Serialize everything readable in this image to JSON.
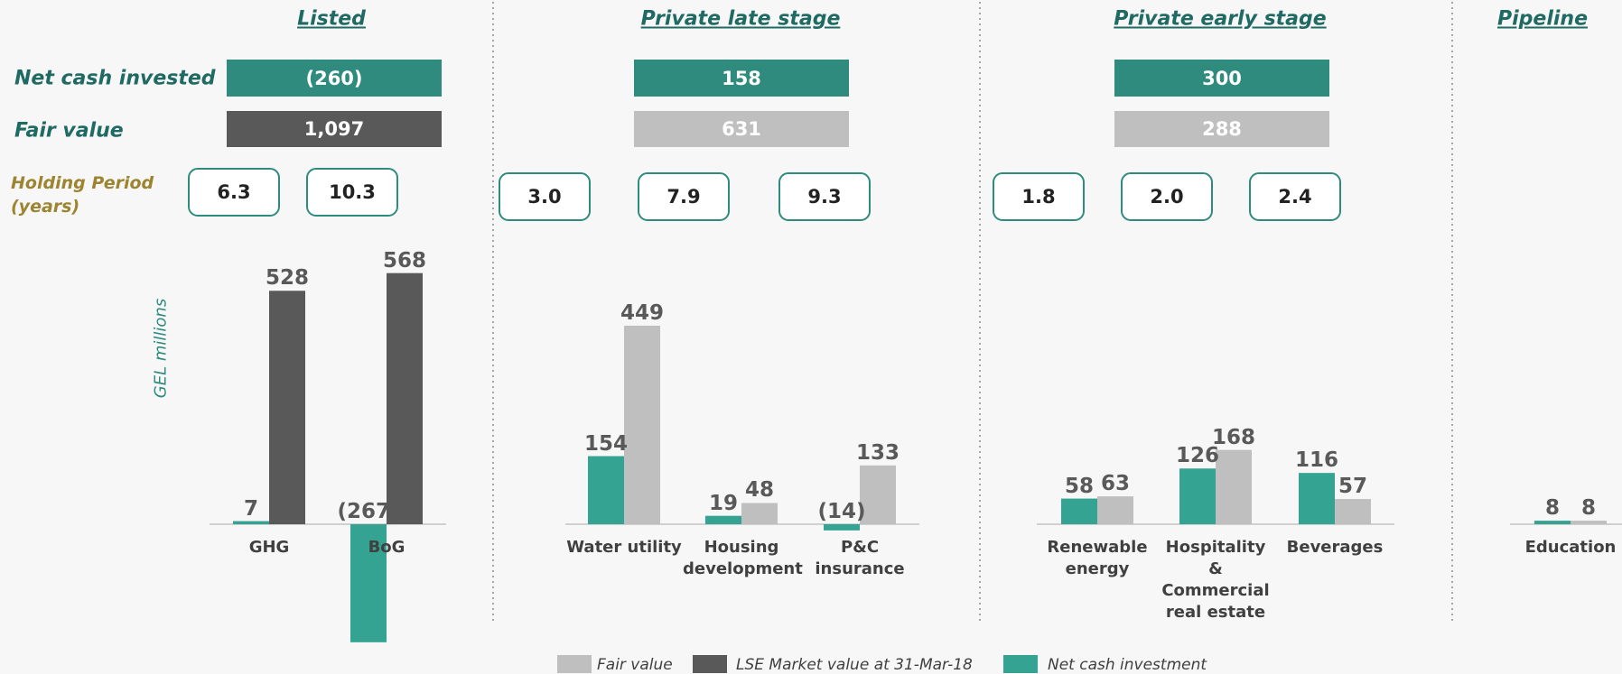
{
  "chart_data": {
    "type": "bar",
    "ylabel": "GEL millions",
    "row_labels": {
      "net_cash": "Net cash invested",
      "fair_value": "Fair value",
      "holding_period": "Holding Period (years)"
    },
    "groups": [
      {
        "title": "Listed",
        "net_cash_invested": -260,
        "net_cash_invested_label": "(260)",
        "fair_value": 1097,
        "fair_value_label": "1,097",
        "fair_value_color": "#595959",
        "holding_periods": [
          6.3,
          10.3
        ],
        "holding_period_labels": [
          "6.3",
          "10.3"
        ]
      },
      {
        "title": "Private late stage",
        "net_cash_invested": 158,
        "fair_value": 631,
        "fair_value_color": "#bfbfbf",
        "holding_periods": [
          3.0,
          7.9,
          9.3
        ],
        "holding_period_labels": [
          "3.0",
          "7.9",
          "9.3"
        ]
      },
      {
        "title": "Private early stage",
        "net_cash_invested": 300,
        "fair_value": 288,
        "fair_value_color": "#bfbfbf",
        "holding_periods": [
          1.8,
          2.0,
          2.4
        ],
        "holding_period_labels": [
          "1.8",
          "2.0",
          "2.4"
        ]
      },
      {
        "title": "Pipeline"
      }
    ],
    "categories": [
      "GHG",
      "BoG",
      "Water utility",
      "Housing development",
      "P&C insurance",
      "Renewable energy",
      "Hospitality & Commercial real estate",
      "Beverages",
      "Education"
    ],
    "series": [
      {
        "name": "Fair value",
        "color": "#bfbfbf",
        "values": [
          null,
          null,
          449,
          48,
          133,
          63,
          168,
          57,
          8
        ]
      },
      {
        "name": "LSE Market value at 31-Mar-18",
        "color": "#595959",
        "values": [
          528,
          568,
          null,
          null,
          null,
          null,
          null,
          null,
          null
        ]
      },
      {
        "name": "Net cash investment",
        "color": "#35a392",
        "values": [
          7,
          -267,
          154,
          19,
          -14,
          58,
          126,
          116,
          8
        ],
        "value_labels": [
          "7",
          "(267)",
          "154",
          "19",
          "(14)",
          "58",
          "126",
          "116",
          "8"
        ]
      }
    ]
  }
}
